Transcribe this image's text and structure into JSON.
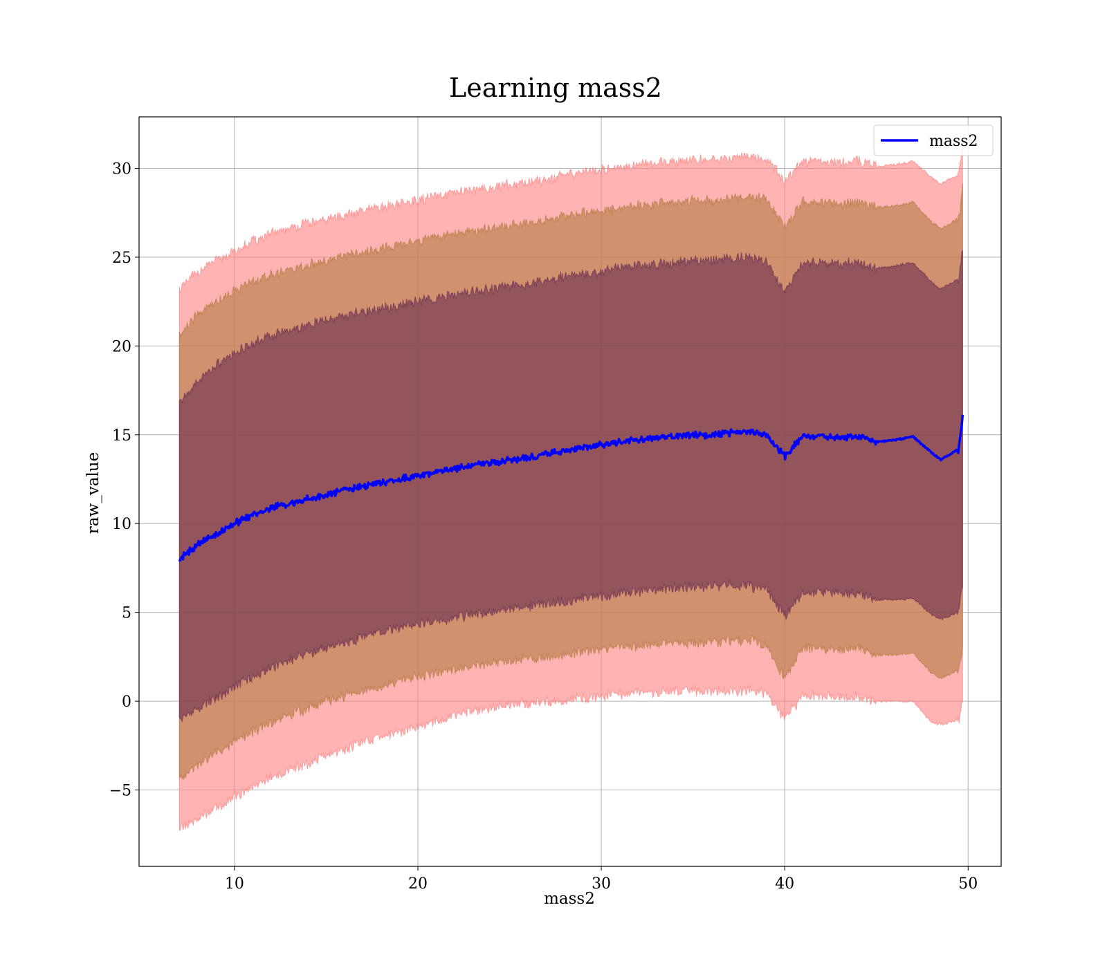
{
  "chart_data": {
    "type": "line",
    "title": "Learning mass2",
    "xlabel": "mass2",
    "ylabel": "raw_value",
    "xlim": [
      4.8,
      51.8
    ],
    "ylim": [
      -9.3,
      32.9
    ],
    "xticks": [
      10,
      20,
      30,
      40,
      50
    ],
    "xtick_labels": [
      "10",
      "20",
      "30",
      "40",
      "50"
    ],
    "yticks": [
      -5,
      0,
      5,
      10,
      15,
      20,
      25,
      30
    ],
    "ytick_labels": [
      "−5",
      "0",
      "5",
      "10",
      "15",
      "20",
      "25",
      "30"
    ],
    "grid": true,
    "legend": {
      "position": "top-right",
      "entries": [
        "mass2"
      ]
    },
    "x_range": [
      7,
      49.7
    ],
    "series": [
      {
        "name": "mass2",
        "color": "#0000ff",
        "x": [
          7,
          8,
          9,
          10,
          11,
          12,
          13,
          14,
          15,
          16,
          17,
          18,
          19,
          20,
          21,
          22,
          23,
          24,
          25,
          26,
          27,
          28,
          29,
          30,
          31,
          32,
          33,
          34,
          35,
          36,
          37,
          38,
          39,
          40,
          41,
          42,
          43,
          44,
          45,
          46,
          47,
          48,
          48.5,
          49,
          49.5,
          49.7
        ],
        "values": [
          8.0,
          8.8,
          9.4,
          10.0,
          10.5,
          10.9,
          11.1,
          11.4,
          11.6,
          11.9,
          12.1,
          12.3,
          12.5,
          12.7,
          12.9,
          13.1,
          13.3,
          13.4,
          13.6,
          13.7,
          13.9,
          14.1,
          14.3,
          14.4,
          14.6,
          14.7,
          14.8,
          14.9,
          15.0,
          15.0,
          15.1,
          15.2,
          15.0,
          13.8,
          14.9,
          14.9,
          14.8,
          14.9,
          14.6,
          14.7,
          14.9,
          14.0,
          13.6,
          13.9,
          14.2,
          16.0
        ]
      }
    ],
    "bands": [
      {
        "name": "outer",
        "color": "#ff8080",
        "upper": [
          23.2,
          24.2,
          24.8,
          25.3,
          25.9,
          26.3,
          26.6,
          26.9,
          27.1,
          27.4,
          27.6,
          27.8,
          28.0,
          28.2,
          28.4,
          28.6,
          28.8,
          28.9,
          29.1,
          29.2,
          29.4,
          29.6,
          29.8,
          29.9,
          30.1,
          30.2,
          30.3,
          30.4,
          30.5,
          30.5,
          30.6,
          30.7,
          30.5,
          29.3,
          30.4,
          30.4,
          30.3,
          30.4,
          30.1,
          30.2,
          30.4,
          29.5,
          29.1,
          29.4,
          29.7,
          31.5
        ],
        "lower": [
          -7.2,
          -6.6,
          -6.0,
          -5.4,
          -4.8,
          -4.3,
          -3.9,
          -3.5,
          -3.1,
          -2.7,
          -2.3,
          -2.0,
          -1.7,
          -1.4,
          -1.1,
          -0.8,
          -0.5,
          -0.4,
          -0.2,
          -0.1,
          0.0,
          0.1,
          0.2,
          0.3,
          0.4,
          0.5,
          0.5,
          0.6,
          0.6,
          0.6,
          0.6,
          0.6,
          0.5,
          -1.0,
          0.3,
          0.3,
          0.2,
          0.3,
          0.0,
          0.0,
          0.0,
          -1.2,
          -1.3,
          -1.2,
          -1.0,
          0.0
        ]
      },
      {
        "name": "middle",
        "color": "#b07a40",
        "upper": [
          20.6,
          21.8,
          22.5,
          23.1,
          23.6,
          24.0,
          24.3,
          24.6,
          24.8,
          25.1,
          25.3,
          25.5,
          25.7,
          25.9,
          26.1,
          26.3,
          26.5,
          26.6,
          26.8,
          26.9,
          27.1,
          27.3,
          27.5,
          27.6,
          27.8,
          27.9,
          28.0,
          28.1,
          28.2,
          28.2,
          28.3,
          28.4,
          28.2,
          26.7,
          28.1,
          28.1,
          28.0,
          28.1,
          27.8,
          27.9,
          28.1,
          27.0,
          26.6,
          26.9,
          27.2,
          29.0
        ],
        "lower": [
          -4.4,
          -3.6,
          -2.9,
          -2.3,
          -1.7,
          -1.2,
          -0.8,
          -0.4,
          0.0,
          0.3,
          0.6,
          0.9,
          1.2,
          1.4,
          1.6,
          1.8,
          2.0,
          2.1,
          2.3,
          2.4,
          2.5,
          2.6,
          2.8,
          2.9,
          3.0,
          3.1,
          3.2,
          3.3,
          3.3,
          3.3,
          3.4,
          3.4,
          3.2,
          1.2,
          3.0,
          3.0,
          2.9,
          3.0,
          2.6,
          2.6,
          2.7,
          1.6,
          1.3,
          1.5,
          1.8,
          3.0
        ]
      },
      {
        "name": "inner",
        "color": "#6a2c50",
        "upper": [
          16.8,
          18.0,
          18.9,
          19.6,
          20.2,
          20.6,
          20.9,
          21.2,
          21.4,
          21.7,
          21.9,
          22.1,
          22.3,
          22.5,
          22.7,
          22.9,
          23.1,
          23.2,
          23.4,
          23.5,
          23.7,
          23.9,
          24.1,
          24.2,
          24.4,
          24.5,
          24.6,
          24.7,
          24.8,
          24.8,
          24.9,
          25.0,
          24.8,
          23.0,
          24.7,
          24.7,
          24.6,
          24.7,
          24.4,
          24.5,
          24.7,
          23.6,
          23.2,
          23.5,
          23.8,
          25.5
        ],
        "lower": [
          -1.0,
          -0.4,
          0.2,
          0.8,
          1.4,
          1.9,
          2.3,
          2.7,
          3.0,
          3.3,
          3.6,
          3.9,
          4.1,
          4.3,
          4.5,
          4.7,
          4.9,
          5.0,
          5.2,
          5.3,
          5.5,
          5.6,
          5.8,
          5.9,
          6.1,
          6.2,
          6.3,
          6.4,
          6.4,
          6.4,
          6.5,
          6.5,
          6.3,
          4.8,
          6.1,
          6.1,
          6.0,
          6.1,
          5.7,
          5.7,
          5.8,
          4.9,
          4.6,
          4.8,
          5.1,
          6.5
        ]
      }
    ]
  }
}
